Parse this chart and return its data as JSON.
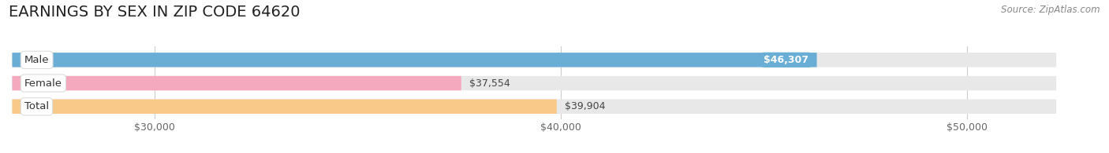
{
  "title": "EARNINGS BY SEX IN ZIP CODE 64620",
  "source": "Source: ZipAtlas.com",
  "categories": [
    "Male",
    "Female",
    "Total"
  ],
  "values": [
    46307,
    37554,
    39904
  ],
  "bar_colors": [
    "#6aaed6",
    "#f4a9be",
    "#f9c98a"
  ],
  "bar_labels": [
    "$46,307",
    "$37,554",
    "$39,904"
  ],
  "label_text_colors": [
    "#ffffff",
    "#555555",
    "#555555"
  ],
  "label_inside": [
    true,
    false,
    false
  ],
  "xmin": 28000,
  "xmax": 52000,
  "xticks": [
    30000,
    40000,
    50000
  ],
  "xtick_labels": [
    "$30,000",
    "$40,000",
    "$50,000"
  ],
  "background_color": "#ffffff",
  "bar_bg_color": "#e8e8e8",
  "title_fontsize": 14,
  "source_fontsize": 8.5,
  "label_fontsize": 9,
  "tick_fontsize": 9,
  "cat_fontsize": 9.5
}
